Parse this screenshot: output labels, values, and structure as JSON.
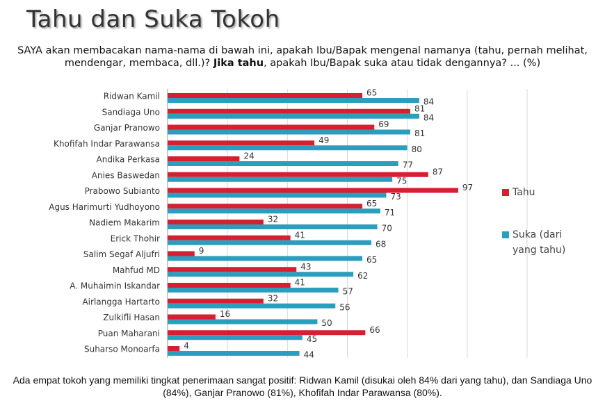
{
  "chart_data": {
    "type": "bar",
    "orientation": "horizontal",
    "title": "Tahu dan Suka Tokoh",
    "subtitle": [
      "SAYA akan membacakan nama-nama di bawah ini, apakah Ibu/Bapak mengenal namanya (tahu, pernah melihat, mendengar, membaca, dll.)? ",
      "Jika tahu",
      ", apakah Ibu/Bapak suka atau tidak dengannya? ... (%)"
    ],
    "note": "Ada empat tokoh yang memiliki tingkat penerimaan sangat positif: Ridwan Kamil (disukai oleh 84% dari yang tahu), dan Sandiaga Uno (84%), Ganjar Pranowo (81%), Khofifah  Indar Parawansa (80%).",
    "categories": [
      "Ridwan Kamil",
      "Sandiaga Uno",
      "Ganjar Pranowo",
      "Khofifah Indar Parawansa",
      "Andika Perkasa",
      "Anies Baswedan",
      "Prabowo Subianto",
      "Agus Harimurti Yudhoyono",
      "Nadiem Makarim",
      "Erick Thohir",
      "Salim Segaf Aljufri",
      "Mahfud MD",
      "A. Muhaimin Iskandar",
      "Airlangga Hartarto",
      "Zulkifli Hasan",
      "Puan Maharani",
      "Suharso Monoarfa"
    ],
    "series": [
      {
        "name": "Tahu",
        "color": "#d42030",
        "values": [
          65,
          81,
          69,
          49,
          24,
          87,
          97,
          65,
          32,
          41,
          9,
          43,
          41,
          32,
          16,
          66,
          4
        ]
      },
      {
        "name": "Suka (dari yang tahu)",
        "color": "#2c9ebd",
        "values": [
          84,
          84,
          81,
          80,
          77,
          75,
          73,
          71,
          70,
          68,
          65,
          62,
          57,
          56,
          50,
          45,
          44
        ]
      }
    ],
    "xlim": [
      0,
      120
    ],
    "xticks": [
      0,
      20,
      40,
      60,
      80,
      100,
      120
    ],
    "grid": true,
    "legend": "right"
  }
}
